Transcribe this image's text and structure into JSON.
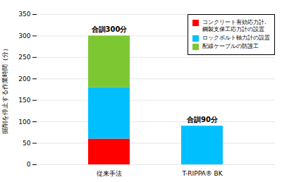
{
  "chart_data": {
    "type": "bar",
    "stacked": true,
    "categories": [
      "従来手法",
      "T-RIPPA® BK"
    ],
    "series": [
      {
        "name": "コンクリート有効応力計.\n鋼製支保工応力計の設置",
        "color": "#ff0000",
        "values": [
          60,
          0
        ]
      },
      {
        "name": "ロックボルト軸力計の設置",
        "color": "#00bfff",
        "values": [
          120,
          90
        ]
      },
      {
        "name": "配線ケーブルの防護工",
        "color": "#7dc832",
        "values": [
          120,
          0
        ]
      }
    ],
    "annotations": [
      {
        "text": "合訓300分",
        "category": "従来手法"
      },
      {
        "text": "合訓90分",
        "category": "T-RIPPA® BK"
      }
    ],
    "ylabel": "掘削を停止する作業時間（分）",
    "ylim": [
      0,
      350
    ],
    "yticks": [
      0,
      50,
      100,
      150,
      200,
      250,
      300,
      350
    ],
    "grid": true,
    "legend": "upper right"
  }
}
